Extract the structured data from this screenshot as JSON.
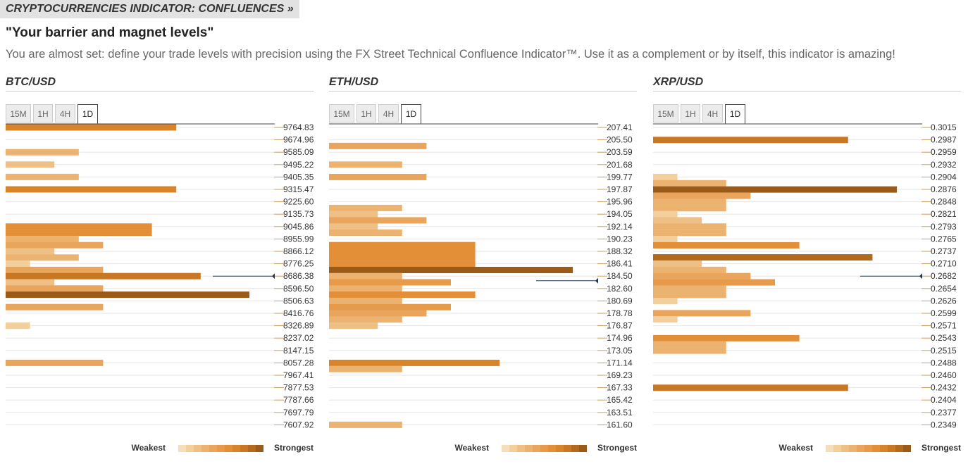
{
  "header": {
    "banner": "CRYPTOCURRENCIES INDICATOR: CONFLUENCES »",
    "title": "\"Your barrier and magnet levels\"",
    "description": "You are almost set: define your trade levels with precision using the FX Street Technical Confluence Indicator™. Use it as a complement or by itself, this indicator is amazing!"
  },
  "timeframes": [
    "15M",
    "1H",
    "4H",
    "1D"
  ],
  "active_timeframe": "1D",
  "legend": {
    "weakest": "Weakest",
    "strongest": "Strongest"
  },
  "colors": {
    "scale": [
      "#f5deb9",
      "#f2cf9b",
      "#efc085",
      "#ecb26f",
      "#e9a55c",
      "#e69a4a",
      "#e38f38",
      "#d8842b",
      "#c87823",
      "#b46a1d",
      "#9a5a18"
    ],
    "line": "#888888",
    "marker": "#1f3552"
  },
  "chart_data": [
    {
      "type": "bar",
      "pair": "BTC/USD",
      "levels": [
        "9764.83",
        "9674.96",
        "9585.09",
        "9495.22",
        "9405.35",
        "9315.47",
        "9225.60",
        "9135.73",
        "9045.86",
        "8955.99",
        "8866.12",
        "8776.25",
        "8686.38",
        "8596.50",
        "8506.63",
        "8416.76",
        "8326.89",
        "8237.02",
        "8147.15",
        "8057.28",
        "7967.41",
        "7877.53",
        "7787.66",
        "7697.79",
        "7607.92"
      ],
      "current_price": 8686.38,
      "bars": [
        {
          "level": 9764.83,
          "strength": 7
        },
        {
          "level": 9585.09,
          "strength": 3
        },
        {
          "level": 9495.22,
          "strength": 2
        },
        {
          "level": 9405.35,
          "strength": 3
        },
        {
          "level": 9315.47,
          "strength": 7
        },
        {
          "level": 9045.86,
          "strength": 6
        },
        {
          "level": 9000.9,
          "strength": 6
        },
        {
          "level": 8955.99,
          "strength": 3
        },
        {
          "level": 8911.1,
          "strength": 4
        },
        {
          "level": 8866.12,
          "strength": 2
        },
        {
          "level": 8821.2,
          "strength": 3
        },
        {
          "level": 8776.25,
          "strength": 1
        },
        {
          "level": 8731.3,
          "strength": 4
        },
        {
          "level": 8686.38,
          "strength": 8
        },
        {
          "level": 8641.4,
          "strength": 2
        },
        {
          "level": 8596.5,
          "strength": 4
        },
        {
          "level": 8551.6,
          "strength": 10
        },
        {
          "level": 8461.7,
          "strength": 4
        },
        {
          "level": 8326.89,
          "strength": 1
        },
        {
          "level": 8057.28,
          "strength": 4
        }
      ]
    },
    {
      "type": "bar",
      "pair": "ETH/USD",
      "levels": [
        "207.41",
        "205.50",
        "203.59",
        "201.68",
        "199.77",
        "197.87",
        "195.96",
        "194.05",
        "192.14",
        "190.23",
        "188.32",
        "186.41",
        "184.50",
        "182.60",
        "180.69",
        "178.78",
        "176.87",
        "174.96",
        "173.05",
        "171.14",
        "169.23",
        "167.33",
        "165.42",
        "163.51",
        "161.60"
      ],
      "current_price": 183.8,
      "bars": [
        {
          "level": 204.55,
          "strength": 4
        },
        {
          "level": 201.68,
          "strength": 3
        },
        {
          "level": 199.77,
          "strength": 4
        },
        {
          "level": 195.0,
          "strength": 3
        },
        {
          "level": 194.05,
          "strength": 2
        },
        {
          "level": 193.1,
          "strength": 4
        },
        {
          "level": 192.14,
          "strength": 2
        },
        {
          "level": 191.2,
          "strength": 3
        },
        {
          "level": 189.28,
          "strength": 6
        },
        {
          "level": 188.32,
          "strength": 6
        },
        {
          "level": 187.36,
          "strength": 6
        },
        {
          "level": 186.41,
          "strength": 6
        },
        {
          "level": 185.45,
          "strength": 10
        },
        {
          "level": 184.5,
          "strength": 3
        },
        {
          "level": 183.55,
          "strength": 5
        },
        {
          "level": 182.6,
          "strength": 3
        },
        {
          "level": 181.65,
          "strength": 6
        },
        {
          "level": 180.69,
          "strength": 3
        },
        {
          "level": 179.73,
          "strength": 5
        },
        {
          "level": 178.78,
          "strength": 4
        },
        {
          "level": 177.83,
          "strength": 3
        },
        {
          "level": 176.87,
          "strength": 2
        },
        {
          "level": 171.14,
          "strength": 7
        },
        {
          "level": 170.19,
          "strength": 3
        },
        {
          "level": 161.6,
          "strength": 3
        }
      ]
    },
    {
      "type": "bar",
      "pair": "XRP/USD",
      "levels": [
        "0.3015",
        "0.2987",
        "0.2959",
        "0.2932",
        "0.2904",
        "0.2876",
        "0.2848",
        "0.2821",
        "0.2793",
        "0.2765",
        "0.2737",
        "0.2710",
        "0.2682",
        "0.2654",
        "0.2626",
        "0.2599",
        "0.2571",
        "0.2543",
        "0.2515",
        "0.2488",
        "0.2460",
        "0.2432",
        "0.2404",
        "0.2377",
        "0.2349"
      ],
      "current_price": 0.2682,
      "bars": [
        {
          "level": 0.2987,
          "strength": 8
        },
        {
          "level": 0.2904,
          "strength": 1
        },
        {
          "level": 0.289,
          "strength": 3
        },
        {
          "level": 0.2876,
          "strength": 10
        },
        {
          "level": 0.2862,
          "strength": 4
        },
        {
          "level": 0.2848,
          "strength": 3
        },
        {
          "level": 0.2834,
          "strength": 3
        },
        {
          "level": 0.2821,
          "strength": 1
        },
        {
          "level": 0.2807,
          "strength": 2
        },
        {
          "level": 0.2793,
          "strength": 3
        },
        {
          "level": 0.2779,
          "strength": 3
        },
        {
          "level": 0.2765,
          "strength": 1
        },
        {
          "level": 0.2751,
          "strength": 6
        },
        {
          "level": 0.2724,
          "strength": 9
        },
        {
          "level": 0.271,
          "strength": 2
        },
        {
          "level": 0.2696,
          "strength": 3
        },
        {
          "level": 0.2682,
          "strength": 4
        },
        {
          "level": 0.2668,
          "strength": 5
        },
        {
          "level": 0.2654,
          "strength": 3
        },
        {
          "level": 0.264,
          "strength": 3
        },
        {
          "level": 0.2626,
          "strength": 1
        },
        {
          "level": 0.2599,
          "strength": 4
        },
        {
          "level": 0.2585,
          "strength": 1
        },
        {
          "level": 0.2543,
          "strength": 6
        },
        {
          "level": 0.2529,
          "strength": 3
        },
        {
          "level": 0.2515,
          "strength": 3
        },
        {
          "level": 0.2432,
          "strength": 8
        }
      ]
    }
  ]
}
